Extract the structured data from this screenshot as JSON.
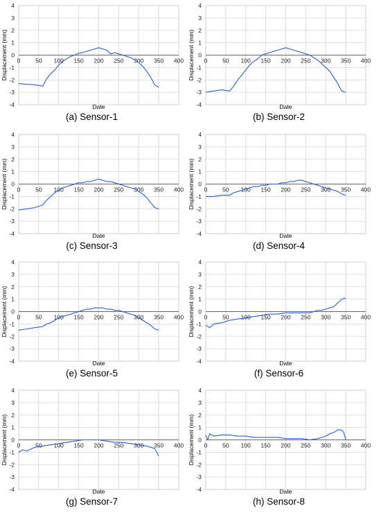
{
  "chart_data": [
    {
      "type": "line",
      "caption": "(a) Sensor-1",
      "xlabel": "Date",
      "ylabel": "Displacement (mm)",
      "xlim": [
        0,
        400
      ],
      "ylim": [
        -4,
        4
      ],
      "xticks": [
        0,
        50,
        100,
        150,
        200,
        250,
        300,
        350,
        400
      ],
      "yticks": [
        4,
        3,
        2,
        1,
        0,
        -1,
        -2,
        -3,
        -4
      ],
      "grid": true,
      "color": "#1f5fd6",
      "series": [
        {
          "x": [
            0,
            20,
            40,
            60,
            70,
            80,
            90,
            100,
            110,
            120,
            130,
            140,
            150,
            160,
            170,
            180,
            190,
            200,
            210,
            220,
            230,
            240,
            250,
            260,
            270,
            280,
            290,
            300,
            310,
            320,
            330,
            340,
            350
          ],
          "y": [
            -2.3,
            -2.35,
            -2.4,
            -2.5,
            -1.9,
            -1.5,
            -1.2,
            -0.8,
            -0.5,
            -0.3,
            -0.1,
            0.0,
            0.15,
            0.2,
            0.3,
            0.4,
            0.5,
            0.6,
            0.5,
            0.4,
            0.1,
            0.2,
            0.1,
            0.0,
            -0.1,
            -0.2,
            -0.4,
            -0.6,
            -0.9,
            -1.3,
            -1.8,
            -2.4,
            -2.6
          ]
        }
      ]
    },
    {
      "type": "line",
      "caption": "(b) Sensor-2",
      "xlabel": "Date",
      "ylabel": "Displacement (mm)",
      "xlim": [
        0,
        400
      ],
      "ylim": [
        -4,
        4
      ],
      "xticks": [
        0,
        50,
        100,
        150,
        200,
        250,
        300,
        350,
        400
      ],
      "yticks": [
        4,
        3,
        2,
        1,
        0,
        -1,
        -2,
        -3,
        -4
      ],
      "grid": true,
      "color": "#1f5fd6",
      "series": [
        {
          "x": [
            0,
            20,
            40,
            60,
            70,
            80,
            90,
            100,
            110,
            120,
            130,
            140,
            150,
            160,
            170,
            180,
            190,
            200,
            210,
            220,
            230,
            240,
            250,
            260,
            270,
            280,
            290,
            300,
            310,
            320,
            330,
            340,
            350
          ],
          "y": [
            -3.0,
            -2.9,
            -2.8,
            -2.9,
            -2.5,
            -2.0,
            -1.6,
            -1.2,
            -0.8,
            -0.5,
            -0.3,
            0.0,
            0.1,
            0.2,
            0.3,
            0.4,
            0.5,
            0.6,
            0.5,
            0.4,
            0.3,
            0.2,
            0.1,
            0.0,
            -0.2,
            -0.4,
            -0.7,
            -1.0,
            -1.3,
            -1.8,
            -2.3,
            -2.9,
            -3.0
          ]
        }
      ]
    },
    {
      "type": "line",
      "caption": "(c) Sensor-3",
      "xlabel": "Date",
      "ylabel": "Displacement (mm)",
      "xlim": [
        0,
        400
      ],
      "ylim": [
        -4,
        4
      ],
      "xticks": [
        0,
        50,
        100,
        150,
        200,
        250,
        300,
        350,
        400
      ],
      "yticks": [
        4,
        3,
        2,
        1,
        0,
        -1,
        -2,
        -3,
        -4
      ],
      "grid": true,
      "color": "#1f5fd6",
      "series": [
        {
          "x": [
            0,
            20,
            40,
            60,
            70,
            80,
            90,
            100,
            110,
            120,
            130,
            140,
            150,
            160,
            170,
            180,
            190,
            200,
            210,
            220,
            230,
            240,
            250,
            260,
            270,
            280,
            290,
            300,
            310,
            320,
            330,
            340,
            350
          ],
          "y": [
            -2.1,
            -2.0,
            -1.9,
            -1.7,
            -1.3,
            -1.0,
            -0.7,
            -0.5,
            -0.3,
            -0.2,
            -0.1,
            0.0,
            0.1,
            0.1,
            0.2,
            0.2,
            0.3,
            0.4,
            0.3,
            0.2,
            0.2,
            0.1,
            0.0,
            -0.1,
            -0.2,
            -0.3,
            -0.4,
            -0.6,
            -0.8,
            -1.1,
            -1.5,
            -1.9,
            -2.0
          ]
        }
      ]
    },
    {
      "type": "line",
      "caption": "(d) Sensor-4",
      "xlabel": "Date",
      "ylabel": "Displacement (mm)",
      "xlim": [
        0,
        400
      ],
      "ylim": [
        -4,
        4
      ],
      "xticks": [
        0,
        50,
        100,
        150,
        200,
        250,
        300,
        350,
        400
      ],
      "yticks": [
        4,
        3,
        2,
        1,
        0,
        -1,
        -2,
        -3,
        -4
      ],
      "grid": true,
      "color": "#1f5fd6",
      "series": [
        {
          "x": [
            0,
            20,
            40,
            60,
            70,
            80,
            90,
            100,
            110,
            120,
            130,
            140,
            150,
            160,
            170,
            180,
            190,
            200,
            210,
            220,
            230,
            240,
            250,
            260,
            270,
            280,
            290,
            300,
            310,
            320,
            330,
            340,
            350
          ],
          "y": [
            -1.0,
            -1.0,
            -0.9,
            -0.9,
            -0.7,
            -0.6,
            -0.5,
            -0.4,
            -0.3,
            -0.2,
            -0.2,
            -0.1,
            -0.1,
            0.0,
            0.0,
            0.0,
            0.1,
            0.1,
            0.2,
            0.2,
            0.3,
            0.3,
            0.2,
            0.1,
            0.0,
            -0.1,
            -0.2,
            -0.3,
            -0.4,
            -0.5,
            -0.6,
            -0.8,
            -0.9
          ]
        }
      ]
    },
    {
      "type": "line",
      "caption": "(e) Sensor-5",
      "xlabel": "Date",
      "ylabel": "Displacement (mm)",
      "xlim": [
        0,
        400
      ],
      "ylim": [
        -4,
        4
      ],
      "xticks": [
        0,
        50,
        100,
        150,
        200,
        250,
        300,
        350,
        400
      ],
      "yticks": [
        4,
        3,
        2,
        1,
        0,
        -1,
        -2,
        -3,
        -4
      ],
      "grid": true,
      "color": "#1f5fd6",
      "series": [
        {
          "x": [
            0,
            20,
            40,
            60,
            70,
            80,
            90,
            100,
            110,
            120,
            130,
            140,
            150,
            160,
            170,
            180,
            190,
            200,
            210,
            220,
            230,
            240,
            250,
            260,
            270,
            280,
            290,
            300,
            310,
            320,
            330,
            340,
            350
          ],
          "y": [
            -1.5,
            -1.4,
            -1.3,
            -1.2,
            -1.0,
            -0.9,
            -0.7,
            -0.5,
            -0.4,
            -0.3,
            -0.2,
            -0.1,
            0.0,
            0.1,
            0.2,
            0.2,
            0.3,
            0.3,
            0.3,
            0.2,
            0.2,
            0.1,
            0.1,
            0.0,
            -0.1,
            -0.2,
            -0.3,
            -0.5,
            -0.7,
            -0.9,
            -1.1,
            -1.4,
            -1.5
          ]
        }
      ]
    },
    {
      "type": "line",
      "caption": "(f) Sensor-6",
      "xlabel": "Date",
      "ylabel": "Displacement (mm)",
      "xlim": [
        0,
        400
      ],
      "ylim": [
        -4,
        4
      ],
      "xticks": [
        0,
        50,
        100,
        150,
        200,
        250,
        300,
        350,
        400
      ],
      "yticks": [
        4,
        3,
        2,
        1,
        0,
        -1,
        -2,
        -3,
        -4
      ],
      "grid": true,
      "color": "#1f5fd6",
      "series": [
        {
          "x": [
            0,
            10,
            20,
            40,
            60,
            80,
            100,
            120,
            140,
            160,
            180,
            200,
            220,
            240,
            260,
            270,
            280,
            290,
            300,
            310,
            320,
            330,
            340,
            350
          ],
          "y": [
            -1.1,
            -1.3,
            -1.0,
            -0.9,
            -0.7,
            -0.6,
            -0.5,
            -0.4,
            -0.3,
            -0.2,
            -0.2,
            -0.1,
            -0.1,
            -0.1,
            -0.1,
            0.0,
            0.1,
            0.1,
            0.2,
            0.3,
            0.4,
            0.7,
            1.0,
            1.1
          ]
        }
      ]
    },
    {
      "type": "line",
      "caption": "(g) Sensor-7",
      "xlabel": "Date",
      "ylabel": "Displacement (mm)",
      "xlim": [
        0,
        400
      ],
      "ylim": [
        -4,
        4
      ],
      "xticks": [
        0,
        50,
        100,
        150,
        200,
        250,
        300,
        350,
        400
      ],
      "yticks": [
        4,
        3,
        2,
        1,
        0,
        -1,
        -2,
        -3,
        -4
      ],
      "grid": true,
      "color": "#1f5fd6",
      "series": [
        {
          "x": [
            0,
            10,
            20,
            40,
            60,
            80,
            100,
            120,
            140,
            160,
            180,
            200,
            220,
            240,
            260,
            280,
            300,
            320,
            330,
            340,
            350
          ],
          "y": [
            -1.0,
            -0.8,
            -0.9,
            -0.6,
            -0.5,
            -0.4,
            -0.3,
            -0.2,
            -0.1,
            0.0,
            0.0,
            0.0,
            -0.1,
            -0.2,
            -0.2,
            -0.3,
            -0.4,
            -0.5,
            -0.6,
            -0.7,
            -1.3
          ]
        }
      ]
    },
    {
      "type": "line",
      "caption": "(h) Sensor-8",
      "xlabel": "Date",
      "ylabel": "Displacement (mm)",
      "xlim": [
        0,
        400
      ],
      "ylim": [
        -4,
        4
      ],
      "xticks": [
        0,
        50,
        100,
        150,
        200,
        250,
        300,
        350,
        400
      ],
      "yticks": [
        4,
        3,
        2,
        1,
        0,
        -1,
        -2,
        -3,
        -4
      ],
      "grid": true,
      "color": "#1f5fd6",
      "series": [
        {
          "x": [
            0,
            5,
            10,
            20,
            40,
            60,
            80,
            100,
            120,
            140,
            160,
            180,
            200,
            220,
            240,
            260,
            280,
            290,
            300,
            310,
            320,
            330,
            340,
            345,
            350
          ],
          "y": [
            0.4,
            0.0,
            0.5,
            0.3,
            0.4,
            0.4,
            0.3,
            0.3,
            0.2,
            0.2,
            0.2,
            0.2,
            0.1,
            0.1,
            0.1,
            0.0,
            0.1,
            0.2,
            0.3,
            0.5,
            0.6,
            0.8,
            0.8,
            0.6,
            0.0
          ]
        }
      ]
    }
  ]
}
